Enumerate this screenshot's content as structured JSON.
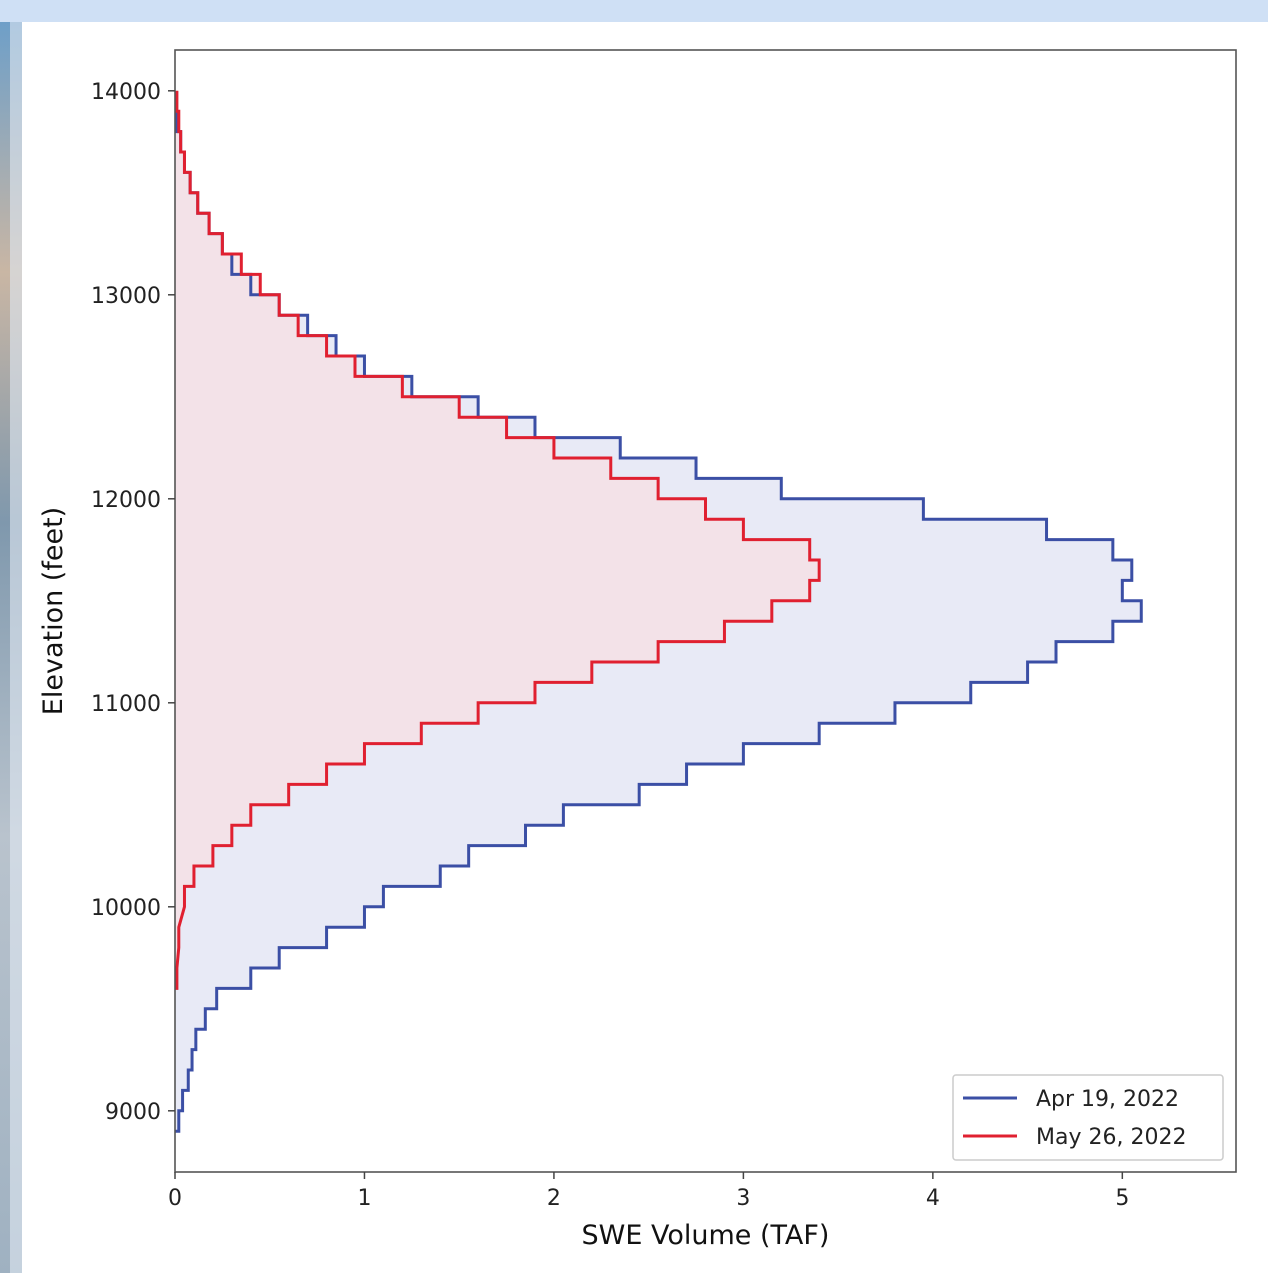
{
  "chart_data": {
    "type": "area",
    "orientation": "horizontal-step",
    "xlabel": "SWE Volume (TAF)",
    "ylabel": "Elevation (feet)",
    "xlim": [
      0,
      5.6
    ],
    "ylim": [
      8700,
      14200
    ],
    "xticks": [
      "0",
      "1",
      "2",
      "3",
      "4",
      "5"
    ],
    "yticks": [
      "9000",
      "10000",
      "11000",
      "12000",
      "13000",
      "14000"
    ],
    "grid": false,
    "legend_position": "lower-right",
    "series": [
      {
        "name": "Apr 19, 2022",
        "color": "#3b4fa5",
        "fill": "#e6e8f5",
        "points": [
          [
            8950,
            0.02
          ],
          [
            9050,
            0.04
          ],
          [
            9150,
            0.07
          ],
          [
            9250,
            0.09
          ],
          [
            9350,
            0.11
          ],
          [
            9450,
            0.16
          ],
          [
            9550,
            0.22
          ],
          [
            9650,
            0.4
          ],
          [
            9750,
            0.55
          ],
          [
            9850,
            0.8
          ],
          [
            9950,
            1.0
          ],
          [
            10050,
            1.1
          ],
          [
            10150,
            1.4
          ],
          [
            10250,
            1.55
          ],
          [
            10350,
            1.85
          ],
          [
            10450,
            2.05
          ],
          [
            10550,
            2.45
          ],
          [
            10650,
            2.7
          ],
          [
            10750,
            3.0
          ],
          [
            10850,
            3.4
          ],
          [
            10950,
            3.8
          ],
          [
            11050,
            4.2
          ],
          [
            11150,
            4.5
          ],
          [
            11250,
            4.65
          ],
          [
            11350,
            4.95
          ],
          [
            11450,
            5.1
          ],
          [
            11550,
            5.0
          ],
          [
            11650,
            5.05
          ],
          [
            11750,
            4.95
          ],
          [
            11850,
            4.6
          ],
          [
            11950,
            3.95
          ],
          [
            12050,
            3.2
          ],
          [
            12150,
            2.75
          ],
          [
            12250,
            2.35
          ],
          [
            12350,
            1.9
          ],
          [
            12450,
            1.6
          ],
          [
            12550,
            1.25
          ],
          [
            12650,
            1.0
          ],
          [
            12750,
            0.85
          ],
          [
            12850,
            0.7
          ],
          [
            12950,
            0.55
          ],
          [
            13050,
            0.4
          ],
          [
            13150,
            0.3
          ],
          [
            13250,
            0.25
          ],
          [
            13350,
            0.18
          ],
          [
            13450,
            0.12
          ],
          [
            13550,
            0.08
          ],
          [
            13650,
            0.05
          ],
          [
            13750,
            0.03
          ],
          [
            13850,
            0.01
          ]
        ]
      },
      {
        "name": "May 26, 2022",
        "color": "#e02030",
        "fill": "#f7dfe3",
        "points": [
          [
            9650,
            0.01
          ],
          [
            9850,
            0.02
          ],
          [
            10050,
            0.05
          ],
          [
            10150,
            0.1
          ],
          [
            10250,
            0.2
          ],
          [
            10350,
            0.3
          ],
          [
            10450,
            0.4
          ],
          [
            10550,
            0.6
          ],
          [
            10650,
            0.8
          ],
          [
            10750,
            1.0
          ],
          [
            10850,
            1.3
          ],
          [
            10950,
            1.6
          ],
          [
            11050,
            1.9
          ],
          [
            11150,
            2.2
          ],
          [
            11250,
            2.55
          ],
          [
            11350,
            2.9
          ],
          [
            11450,
            3.15
          ],
          [
            11550,
            3.35
          ],
          [
            11650,
            3.4
          ],
          [
            11750,
            3.35
          ],
          [
            11850,
            3.0
          ],
          [
            11950,
            2.8
          ],
          [
            12050,
            2.55
          ],
          [
            12150,
            2.3
          ],
          [
            12250,
            2.0
          ],
          [
            12350,
            1.75
          ],
          [
            12450,
            1.5
          ],
          [
            12550,
            1.2
          ],
          [
            12650,
            0.95
          ],
          [
            12750,
            0.8
          ],
          [
            12850,
            0.65
          ],
          [
            12950,
            0.55
          ],
          [
            13050,
            0.45
          ],
          [
            13150,
            0.35
          ],
          [
            13250,
            0.25
          ],
          [
            13350,
            0.18
          ],
          [
            13450,
            0.12
          ],
          [
            13550,
            0.08
          ],
          [
            13650,
            0.05
          ],
          [
            13750,
            0.03
          ],
          [
            13850,
            0.02
          ],
          [
            13950,
            0.01
          ]
        ]
      }
    ]
  }
}
